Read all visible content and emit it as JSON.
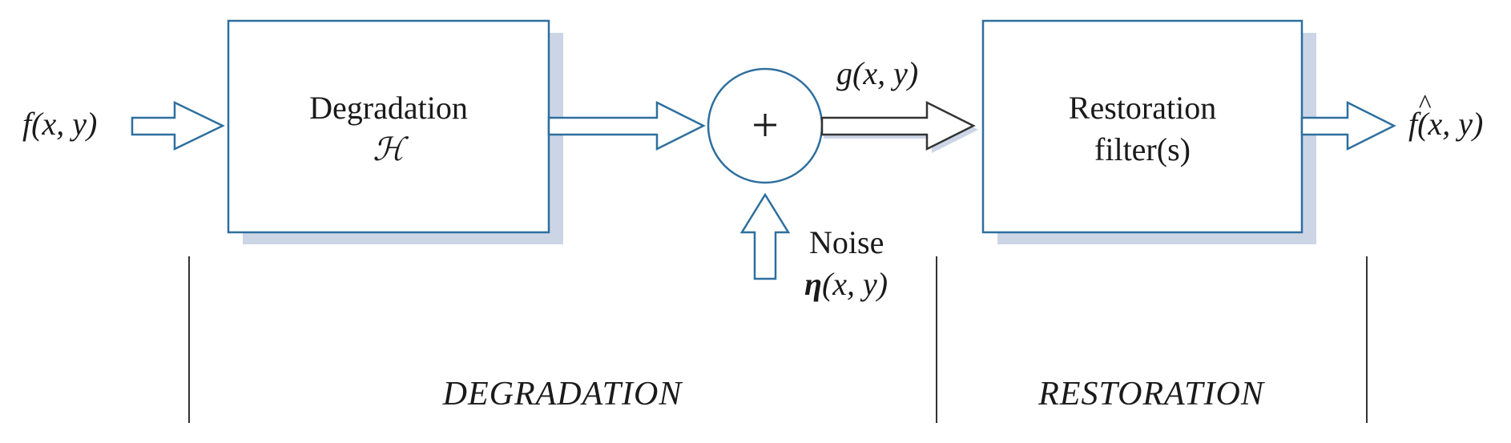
{
  "input_signal": {
    "func": "f",
    "args": "(x, y)"
  },
  "degradation_block": {
    "label": "Degradation",
    "operator": "ℋ"
  },
  "sum_node": {
    "symbol": "+"
  },
  "degraded_signal": {
    "func": "g",
    "args": "(x, y)"
  },
  "noise": {
    "label": "Noise",
    "func": "η",
    "args": "(x, y)"
  },
  "restoration_block": {
    "line1": "Restoration",
    "line2": "filter(s)"
  },
  "output_signal": {
    "func": "f",
    "hat": "^",
    "args": "(x, y)"
  },
  "sections": {
    "degradation": "DEGRADATION",
    "restoration": "RESTORATION"
  },
  "colors": {
    "outline": "#2e6f9e",
    "shadow": "#ccd5e6",
    "text": "#1a1a1a",
    "divider": "#333333",
    "g_arrow": "#333333"
  }
}
